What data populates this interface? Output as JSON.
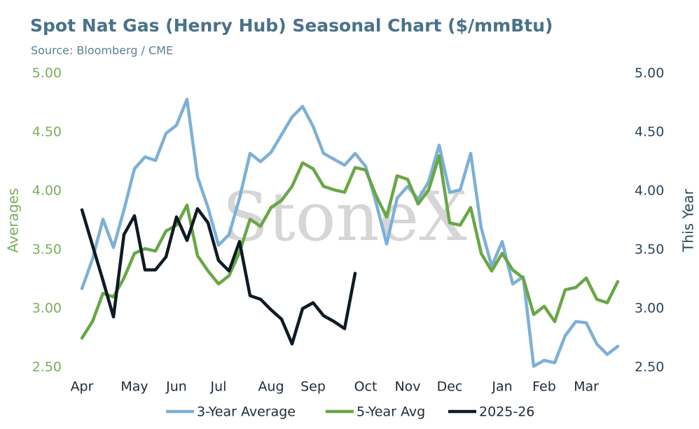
{
  "chart_data": {
    "type": "line",
    "title": "Spot Nat Gas (Henry Hub) Seasonal Chart ($/mmBtu)",
    "subtitle": "Source: Bloomberg / CME",
    "watermark": "StoneX",
    "y_label": "Averages",
    "y2_label": "This Year",
    "categories": [
      "Apr",
      null,
      null,
      null,
      null,
      "May",
      null,
      null,
      null,
      "Jun",
      null,
      null,
      null,
      "Jul",
      null,
      null,
      null,
      null,
      "Aug",
      null,
      null,
      null,
      "Sep",
      null,
      null,
      null,
      null,
      "Oct",
      null,
      null,
      null,
      "Nov",
      null,
      null,
      null,
      "Dec",
      null,
      null,
      null,
      null,
      "Jan",
      null,
      null,
      null,
      "Feb",
      null,
      null,
      null,
      "Mar",
      null,
      null,
      null
    ],
    "ylim": [
      2.5,
      5
    ],
    "yticks": [
      {
        "value": 2.5,
        "label": "2.50"
      },
      {
        "value": 3,
        "label": "3.00"
      },
      {
        "value": 3.5,
        "label": "3.50"
      },
      {
        "value": 4,
        "label": "4.00"
      },
      {
        "value": 4.5,
        "label": "4.50"
      },
      {
        "value": 5,
        "label": "5.00"
      }
    ],
    "y2lim": [
      2.5,
      5
    ],
    "y2ticks": [
      {
        "value": 2.5,
        "label": "2.50"
      },
      {
        "value": 3,
        "label": "3.00"
      },
      {
        "value": 3.5,
        "label": "3.50"
      },
      {
        "value": 4,
        "label": "4.00"
      },
      {
        "value": 4.5,
        "label": "4.50"
      },
      {
        "value": 5,
        "label": "5.00"
      }
    ],
    "grid": false,
    "legend": "bottom",
    "series": [
      {
        "name": "3-Year Average",
        "color": "#7eb0d6",
        "values": [
          3.17,
          3.42,
          3.76,
          3.52,
          3.84,
          4.19,
          4.29,
          4.26,
          4.49,
          4.56,
          4.78,
          4.12,
          3.86,
          3.54,
          3.63,
          3.94,
          4.32,
          4.25,
          4.33,
          4.48,
          4.63,
          4.72,
          4.55,
          4.32,
          4.27,
          4.22,
          4.32,
          4.21,
          3.9,
          3.55,
          3.94,
          4.04,
          3.93,
          4.08,
          4.39,
          3.99,
          4.01,
          4.32,
          3.69,
          3.36,
          3.57,
          3.21,
          3.27,
          2.51,
          2.56,
          2.54,
          2.77,
          2.89,
          2.88,
          2.7,
          2.61,
          2.68
        ]
      },
      {
        "name": "5-Year Avg",
        "color": "#69a746",
        "values": [
          2.75,
          2.89,
          3.13,
          3.1,
          3.26,
          3.47,
          3.51,
          3.49,
          3.66,
          3.71,
          3.88,
          3.45,
          3.32,
          3.21,
          3.28,
          3.48,
          3.76,
          3.7,
          3.86,
          3.92,
          4.04,
          4.24,
          4.19,
          4.04,
          4.01,
          3.99,
          4.2,
          4.18,
          3.96,
          3.78,
          4.13,
          4.1,
          3.89,
          4.01,
          4.3,
          3.73,
          3.71,
          3.86,
          3.47,
          3.32,
          3.47,
          3.33,
          3.26,
          2.95,
          3.02,
          2.89,
          3.16,
          3.18,
          3.26,
          3.08,
          3.05,
          3.23
        ]
      },
      {
        "name": "2025-26",
        "color": "#0f1a24",
        "axis": "y2",
        "values": [
          3.84,
          3.54,
          3.24,
          2.93,
          3.63,
          3.79,
          3.33,
          3.33,
          3.44,
          3.78,
          3.58,
          3.85,
          3.73,
          3.41,
          3.32,
          3.57,
          3.11,
          3.08,
          2.99,
          2.91,
          2.7,
          3.0,
          3.05,
          2.94,
          2.89,
          2.83,
          3.3,
          null,
          null,
          null,
          null,
          null,
          null,
          null,
          null,
          null,
          null,
          null,
          null,
          null,
          null,
          null,
          null,
          null,
          null,
          null,
          null,
          null,
          null,
          null,
          null,
          null
        ]
      }
    ]
  }
}
